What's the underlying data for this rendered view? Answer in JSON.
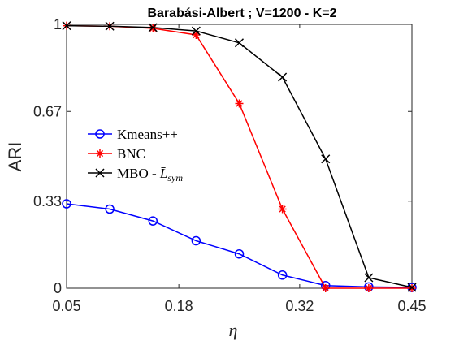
{
  "chart_data": {
    "type": "line",
    "title": "Barabási-Albert ; V=1200 - K=2",
    "xlabel": "η",
    "ylabel": "ARI",
    "x": [
      0.05,
      0.1,
      0.15,
      0.2,
      0.25,
      0.3,
      0.35,
      0.4,
      0.45
    ],
    "xlim": [
      0.05,
      0.45
    ],
    "ylim": [
      0,
      1
    ],
    "xticks": [
      0.05,
      0.18,
      0.32,
      0.45
    ],
    "xtick_labels": [
      "0.05",
      "0.18",
      "0.32",
      "0.45"
    ],
    "yticks": [
      0,
      0.33,
      0.67,
      1
    ],
    "ytick_labels": [
      "0",
      "0.33",
      "0.67",
      "1"
    ],
    "grid": false,
    "legend_position": "middle-left",
    "series": [
      {
        "name": "Kmeans++",
        "color": "#0000ff",
        "marker": "circle",
        "values": [
          0.32,
          0.3,
          0.255,
          0.18,
          0.13,
          0.05,
          0.01,
          0.005,
          0.003
        ]
      },
      {
        "name": "BNC",
        "color": "#ff0000",
        "marker": "asterisk",
        "values": [
          0.995,
          0.993,
          0.985,
          0.96,
          0.7,
          0.3,
          0.0,
          0.0,
          0.0
        ]
      },
      {
        "name": "MBO - L̄_sym",
        "color": "#000000",
        "marker": "x",
        "values": [
          0.995,
          0.993,
          0.988,
          0.975,
          0.93,
          0.8,
          0.49,
          0.04,
          0.003
        ]
      }
    ]
  }
}
